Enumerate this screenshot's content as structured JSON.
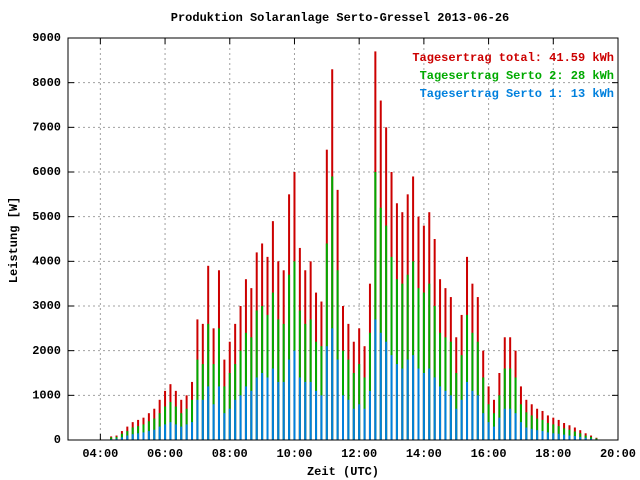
{
  "chart_data": {
    "type": "bar",
    "title": "Produktion Solaranlage Serto-Gressel 2013-06-26",
    "xlabel": "Zeit (UTC)",
    "ylabel": "Leistung [W]",
    "x": [
      260,
      270,
      280,
      290,
      300,
      310,
      320,
      330,
      340,
      350,
      360,
      370,
      380,
      390,
      400,
      410,
      420,
      430,
      440,
      450,
      460,
      470,
      480,
      490,
      500,
      510,
      520,
      530,
      540,
      550,
      560,
      570,
      580,
      590,
      600,
      610,
      620,
      630,
      640,
      650,
      660,
      670,
      680,
      690,
      700,
      710,
      720,
      730,
      740,
      750,
      760,
      770,
      780,
      790,
      800,
      810,
      820,
      830,
      840,
      850,
      860,
      870,
      880,
      890,
      900,
      910,
      920,
      930,
      940,
      950,
      960,
      970,
      980,
      990,
      1000,
      1010,
      1020,
      1030,
      1040,
      1050,
      1060,
      1070,
      1080,
      1090,
      1100,
      1110,
      1120,
      1130,
      1140,
      1150,
      1160
    ],
    "series": [
      {
        "name": "Tagesertrag total: 41.59 kWh",
        "color": "#cc0000",
        "values": [
          80,
          100,
          200,
          300,
          400,
          450,
          500,
          600,
          700,
          900,
          1100,
          1250,
          1100,
          900,
          1000,
          1300,
          2700,
          2600,
          3900,
          2500,
          3800,
          1800,
          2200,
          2600,
          3000,
          3600,
          3400,
          4200,
          4400,
          4100,
          4900,
          4000,
          3800,
          5500,
          6000,
          4300,
          3800,
          4000,
          3300,
          3100,
          6500,
          8300,
          5600,
          3000,
          2600,
          2200,
          2500,
          2100,
          3500,
          8700,
          7600,
          7000,
          6000,
          5300,
          5100,
          5500,
          5900,
          5000,
          4800,
          5100,
          4500,
          3600,
          3400,
          3200,
          2300,
          2800,
          4100,
          3500,
          3200,
          2000,
          1200,
          900,
          1500,
          2300,
          2300,
          2000,
          1200,
          900,
          800,
          700,
          650,
          550,
          500,
          450,
          380,
          330,
          280,
          220,
          150,
          100,
          50
        ]
      },
      {
        "name": "Tagesertrag Serto 2: 28 kWh",
        "color": "#00aa00",
        "values": [
          60,
          70,
          140,
          200,
          280,
          310,
          350,
          420,
          480,
          600,
          750,
          850,
          750,
          600,
          700,
          900,
          1800,
          1700,
          2600,
          1700,
          2500,
          1200,
          1500,
          1700,
          2000,
          2400,
          2300,
          2900,
          3000,
          2800,
          3300,
          2700,
          2600,
          3700,
          4000,
          2900,
          2600,
          2700,
          2200,
          2100,
          4400,
          5900,
          3800,
          2000,
          1800,
          1500,
          1700,
          1400,
          2400,
          6000,
          5200,
          4800,
          4100,
          3600,
          3500,
          3700,
          4000,
          3400,
          3300,
          3500,
          3000,
          2400,
          2300,
          2200,
          1500,
          1900,
          2800,
          2400,
          2200,
          1400,
          800,
          600,
          1000,
          1600,
          1600,
          1400,
          800,
          620,
          550,
          480,
          450,
          380,
          350,
          310,
          260,
          230,
          190,
          150,
          100,
          70,
          35
        ]
      },
      {
        "name": "Tagesertrag Serto 1: 13 kWh",
        "color": "#0080dd",
        "values": [
          20,
          30,
          60,
          100,
          130,
          150,
          170,
          200,
          230,
          300,
          350,
          400,
          350,
          300,
          350,
          400,
          900,
          900,
          1200,
          800,
          1200,
          600,
          700,
          900,
          1000,
          1200,
          1100,
          1400,
          1500,
          1400,
          1600,
          1300,
          1300,
          1800,
          2000,
          1400,
          1300,
          1300,
          1100,
          1000,
          2100,
          2500,
          1800,
          1000,
          900,
          700,
          800,
          700,
          1100,
          2700,
          2400,
          2200,
          1900,
          1700,
          1600,
          1800,
          1900,
          1600,
          1500,
          1600,
          1400,
          1200,
          1100,
          1000,
          700,
          900,
          1300,
          1100,
          1000,
          600,
          400,
          300,
          500,
          700,
          700,
          600,
          400,
          280,
          250,
          220,
          200,
          170,
          150,
          140,
          120,
          100,
          90,
          70,
          50,
          30,
          15
        ]
      }
    ],
    "xlim": [
      180,
      1200
    ],
    "xticks": [
      {
        "value": 240,
        "label": "04:00"
      },
      {
        "value": 360,
        "label": "06:00"
      },
      {
        "value": 480,
        "label": "08:00"
      },
      {
        "value": 600,
        "label": "10:00"
      },
      {
        "value": 720,
        "label": "12:00"
      },
      {
        "value": 840,
        "label": "14:00"
      },
      {
        "value": 960,
        "label": "16:00"
      },
      {
        "value": 1080,
        "label": "18:00"
      },
      {
        "value": 1200,
        "label": "20:00"
      }
    ],
    "ylim": [
      0,
      9000
    ],
    "yticks": [
      0,
      1000,
      2000,
      3000,
      4000,
      5000,
      6000,
      7000,
      8000,
      9000
    ],
    "grid": true,
    "legend": "top-right"
  }
}
